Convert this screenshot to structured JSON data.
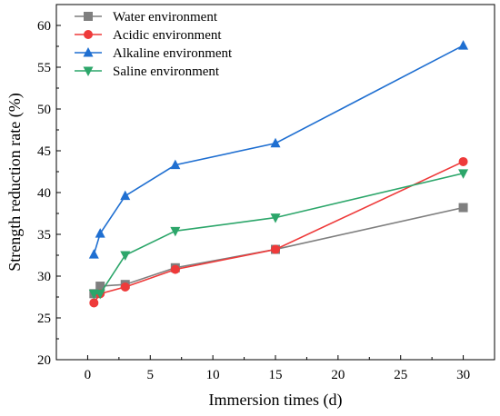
{
  "chart_data": {
    "type": "line",
    "title": "",
    "xlabel": "Immersion times (d)",
    "ylabel": "Strength reduction rate (%)",
    "xlim": [
      -2.5,
      32.5
    ],
    "ylim": [
      20,
      62.5
    ],
    "xticks": [
      0,
      5,
      10,
      15,
      20,
      25,
      30
    ],
    "yticks": [
      20,
      25,
      30,
      35,
      40,
      45,
      50,
      55,
      60
    ],
    "grid": false,
    "legend_position": "top-left",
    "series": [
      {
        "name": "Water environment",
        "color": "#7f7f7f",
        "marker": "square",
        "x": [
          0.5,
          1,
          3,
          7,
          15,
          30
        ],
        "y": [
          27.9,
          28.8,
          29.0,
          31.0,
          33.2,
          38.2
        ]
      },
      {
        "name": "Acidic environment",
        "color": "#ee3a3a",
        "marker": "circle",
        "x": [
          0.5,
          1,
          3,
          7,
          15,
          30
        ],
        "y": [
          26.8,
          27.9,
          28.7,
          30.8,
          33.2,
          43.7
        ]
      },
      {
        "name": "Alkaline environment",
        "color": "#1f6fd1",
        "marker": "triangle-up",
        "x": [
          0.5,
          1,
          3,
          7,
          15,
          30
        ],
        "y": [
          32.6,
          35.1,
          39.6,
          43.3,
          45.9,
          57.6
        ]
      },
      {
        "name": "Saline environment",
        "color": "#2ca66a",
        "marker": "triangle-down",
        "x": [
          0.5,
          1,
          3,
          7,
          15,
          30
        ],
        "y": [
          27.9,
          27.9,
          32.5,
          35.4,
          37.0,
          42.3
        ]
      }
    ]
  }
}
